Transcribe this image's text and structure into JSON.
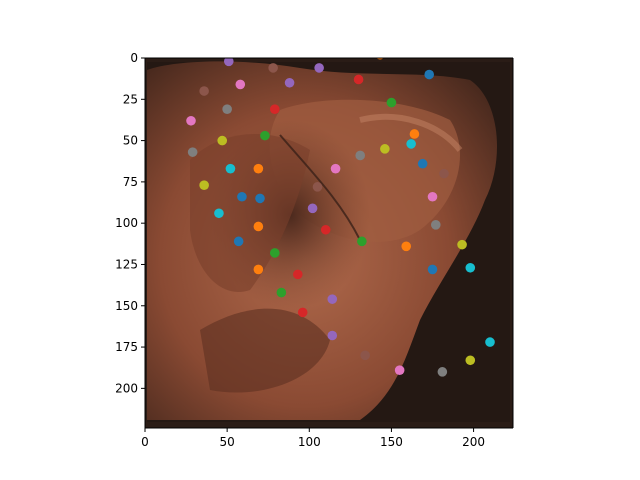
{
  "chart_data": {
    "type": "scatter",
    "background_image": "ear-photo",
    "title": "",
    "xlabel": "",
    "ylabel": "",
    "xlim": [
      0,
      224
    ],
    "ylim": [
      224,
      0
    ],
    "y_inverted": true,
    "grid": false,
    "x_ticks": [
      0,
      50,
      100,
      150,
      200
    ],
    "y_ticks": [
      0,
      25,
      50,
      75,
      100,
      125,
      150,
      175,
      200
    ],
    "marker_colors": [
      "#1f77b4",
      "#ff7f0e",
      "#2ca02c",
      "#d62728",
      "#9467bd",
      "#8c564b",
      "#e377c2",
      "#7f7f7f",
      "#bcbd22",
      "#17becf"
    ],
    "points": [
      {
        "x": 51,
        "y": 2,
        "color": "#9467bd"
      },
      {
        "x": 78,
        "y": 6,
        "color": "#8c564b"
      },
      {
        "x": 106,
        "y": 6,
        "color": "#9467bd"
      },
      {
        "x": 143,
        "y": -2,
        "color": "#ff7f0e"
      },
      {
        "x": 173,
        "y": 10,
        "color": "#1f77b4"
      },
      {
        "x": 130,
        "y": 13,
        "color": "#d62728"
      },
      {
        "x": 88,
        "y": 15,
        "color": "#9467bd"
      },
      {
        "x": 58,
        "y": 16,
        "color": "#e377c2"
      },
      {
        "x": 36,
        "y": 20,
        "color": "#8c564b"
      },
      {
        "x": 150,
        "y": 27,
        "color": "#2ca02c"
      },
      {
        "x": 79,
        "y": 31,
        "color": "#d62728"
      },
      {
        "x": 50,
        "y": 31,
        "color": "#7f7f7f"
      },
      {
        "x": 28,
        "y": 38,
        "color": "#e377c2"
      },
      {
        "x": 164,
        "y": 46,
        "color": "#ff7f0e"
      },
      {
        "x": 73,
        "y": 47,
        "color": "#2ca02c"
      },
      {
        "x": 47,
        "y": 50,
        "color": "#bcbd22"
      },
      {
        "x": 162,
        "y": 52,
        "color": "#17becf"
      },
      {
        "x": 146,
        "y": 55,
        "color": "#bcbd22"
      },
      {
        "x": 29,
        "y": 57,
        "color": "#7f7f7f"
      },
      {
        "x": 131,
        "y": 59,
        "color": "#7f7f7f"
      },
      {
        "x": 169,
        "y": 64,
        "color": "#1f77b4"
      },
      {
        "x": 52,
        "y": 67,
        "color": "#17becf"
      },
      {
        "x": 69,
        "y": 67,
        "color": "#ff7f0e"
      },
      {
        "x": 116,
        "y": 67,
        "color": "#e377c2"
      },
      {
        "x": 182,
        "y": 70,
        "color": "#8c564b"
      },
      {
        "x": 36,
        "y": 77,
        "color": "#bcbd22"
      },
      {
        "x": 105,
        "y": 78,
        "color": "#8c564b"
      },
      {
        "x": 59,
        "y": 84,
        "color": "#1f77b4"
      },
      {
        "x": 70,
        "y": 85,
        "color": "#1f77b4"
      },
      {
        "x": 175,
        "y": 84,
        "color": "#e377c2"
      },
      {
        "x": 102,
        "y": 91,
        "color": "#9467bd"
      },
      {
        "x": 45,
        "y": 94,
        "color": "#17becf"
      },
      {
        "x": 177,
        "y": 101,
        "color": "#7f7f7f"
      },
      {
        "x": 69,
        "y": 102,
        "color": "#ff7f0e"
      },
      {
        "x": 110,
        "y": 104,
        "color": "#d62728"
      },
      {
        "x": 57,
        "y": 111,
        "color": "#1f77b4"
      },
      {
        "x": 132,
        "y": 111,
        "color": "#2ca02c"
      },
      {
        "x": 159,
        "y": 114,
        "color": "#ff7f0e"
      },
      {
        "x": 193,
        "y": 113,
        "color": "#bcbd22"
      },
      {
        "x": 79,
        "y": 118,
        "color": "#2ca02c"
      },
      {
        "x": 69,
        "y": 128,
        "color": "#ff7f0e"
      },
      {
        "x": 175,
        "y": 128,
        "color": "#1f77b4"
      },
      {
        "x": 198,
        "y": 127,
        "color": "#17becf"
      },
      {
        "x": 93,
        "y": 131,
        "color": "#d62728"
      },
      {
        "x": 83,
        "y": 142,
        "color": "#2ca02c"
      },
      {
        "x": 114,
        "y": 146,
        "color": "#9467bd"
      },
      {
        "x": 96,
        "y": 154,
        "color": "#d62728"
      },
      {
        "x": 114,
        "y": 168,
        "color": "#9467bd"
      },
      {
        "x": 210,
        "y": 172,
        "color": "#17becf"
      },
      {
        "x": 134,
        "y": 180,
        "color": "#8c564b"
      },
      {
        "x": 198,
        "y": 183,
        "color": "#bcbd22"
      },
      {
        "x": 155,
        "y": 189,
        "color": "#e377c2"
      },
      {
        "x": 181,
        "y": 190,
        "color": "#7f7f7f"
      }
    ]
  }
}
